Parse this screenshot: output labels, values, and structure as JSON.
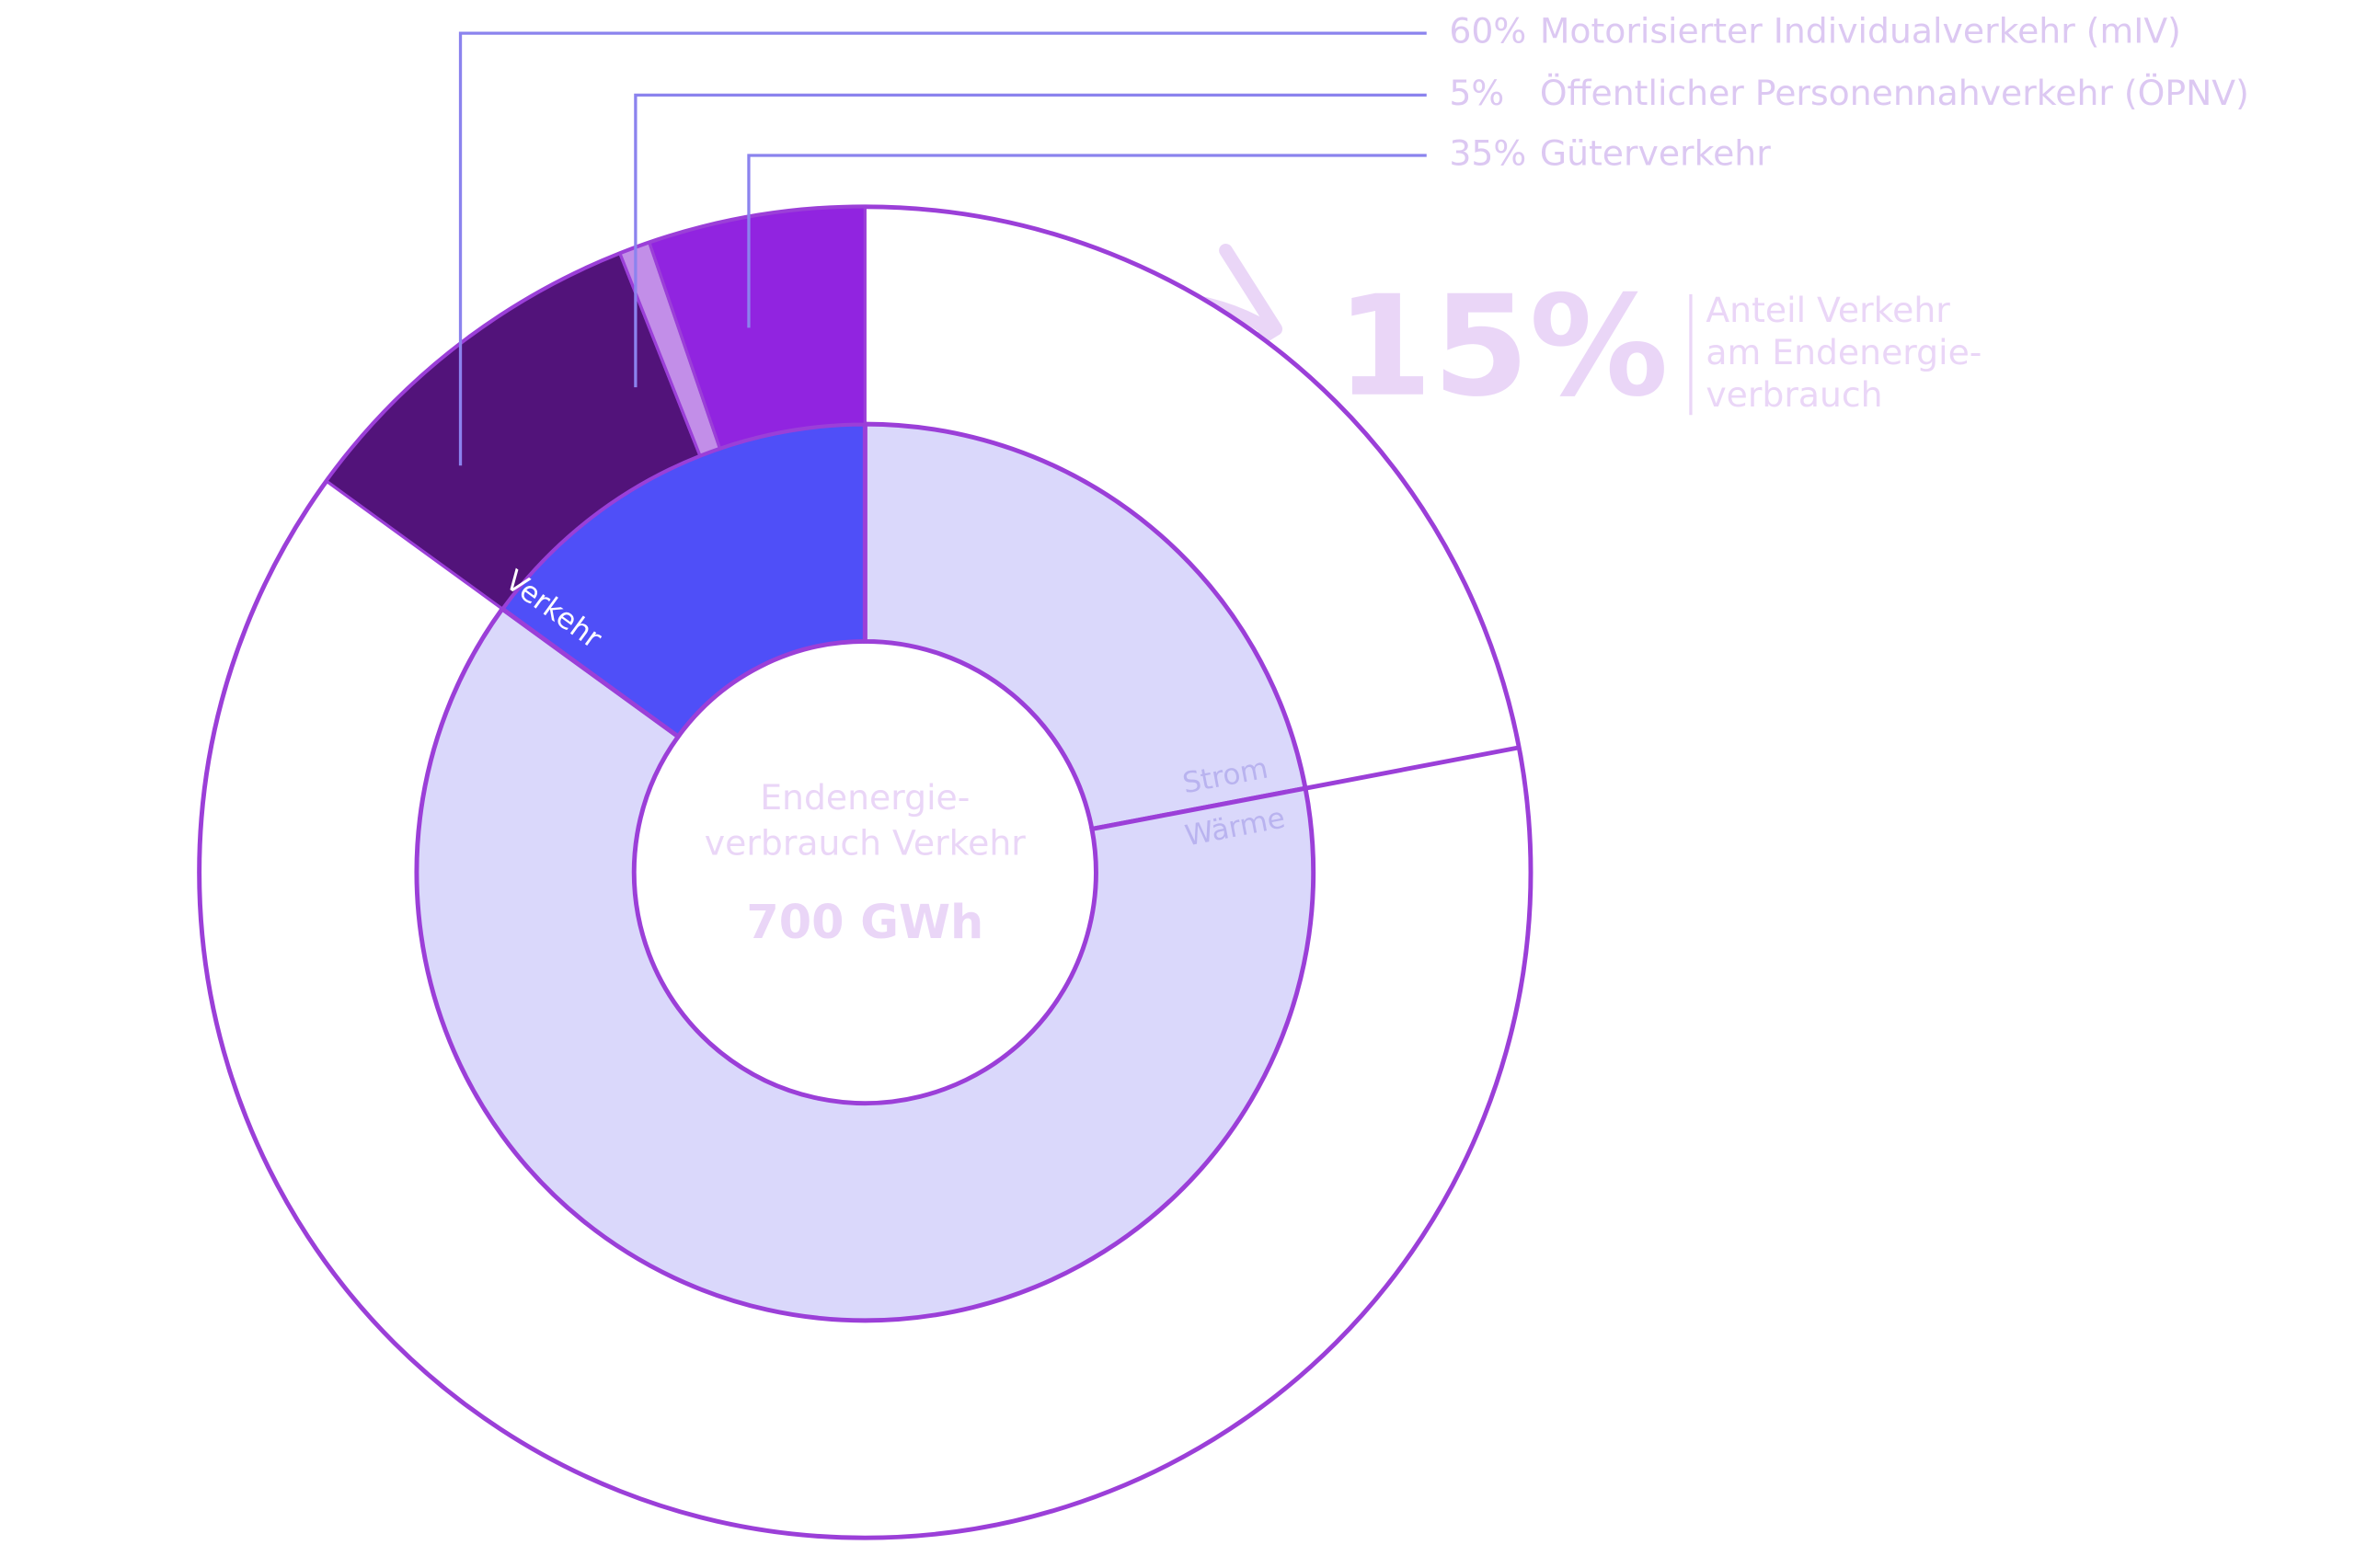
{
  "chart_data": {
    "type": "donut",
    "center_title": [
      "Endenergie-",
      "verbrauch Verkehr"
    ],
    "center_value": "700 GWh",
    "callout_text": [
      "Anteil Verkehr",
      "am Endenergie-",
      "verbrauch"
    ],
    "inner": {
      "categories": [
        "Strom",
        "Wärme",
        "Verkehr"
      ],
      "values": [
        22,
        63,
        15
      ],
      "value_labels": [
        null,
        null,
        "15%"
      ],
      "colors": [
        "#dad8fb",
        "#dad8fb",
        "#4f4ff8"
      ]
    },
    "outer": {
      "parent": 2,
      "categories": [
        "Motorisierter Individualverkehr (mIV)",
        "Öffentlicher Personennahverkehr (ÖPNV)",
        "Güterverkehr"
      ],
      "values": [
        60,
        5,
        35
      ],
      "value_labels": [
        "60%",
        "5%",
        "35%"
      ],
      "colors": [
        "#52137a",
        "#c28ee8",
        "#9124e0"
      ]
    }
  }
}
